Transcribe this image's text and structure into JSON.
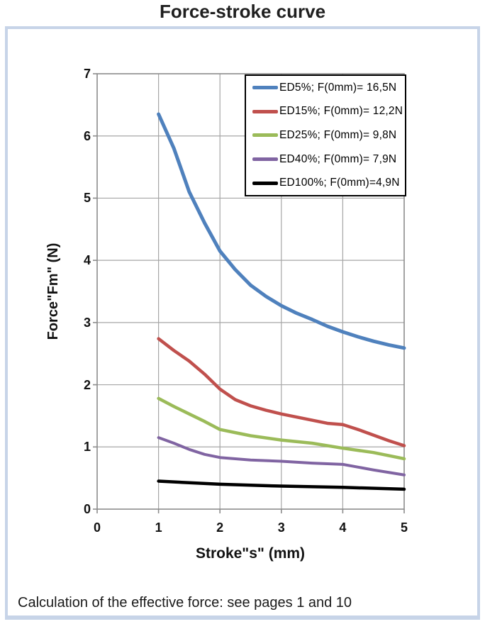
{
  "chart_data": {
    "type": "line",
    "title": "Force-stroke curve",
    "xlabel": "Stroke\"s\" (mm)",
    "ylabel": "Force\"Fm\" (N)",
    "xlim": [
      0,
      5
    ],
    "ylim": [
      0,
      7
    ],
    "x_ticks": [
      "0",
      "1",
      "2",
      "3",
      "4",
      "5"
    ],
    "y_ticks": [
      "0",
      "1",
      "2",
      "3",
      "4",
      "5",
      "6",
      "7"
    ],
    "grid": true,
    "legend_position": "top-right",
    "series": [
      {
        "label": "ED5%; F(0mm)= 16,5N",
        "color": "#4F81BD",
        "x": [
          1,
          1.25,
          1.5,
          1.75,
          2,
          2.25,
          2.5,
          2.75,
          3,
          3.25,
          3.5,
          3.75,
          4,
          4.25,
          4.5,
          4.75,
          5
        ],
        "y": [
          6.35,
          5.8,
          5.1,
          4.6,
          4.15,
          3.85,
          3.6,
          3.42,
          3.27,
          3.15,
          3.05,
          2.94,
          2.85,
          2.77,
          2.7,
          2.64,
          2.59
        ]
      },
      {
        "label": "ED15%; F(0mm)= 12,2N",
        "color": "#C0504D",
        "x": [
          1,
          1.25,
          1.5,
          1.75,
          2,
          2.25,
          2.5,
          2.75,
          3,
          3.25,
          3.5,
          3.75,
          4,
          4.25,
          4.5,
          4.75,
          5
        ],
        "y": [
          2.74,
          2.55,
          2.38,
          2.17,
          1.93,
          1.76,
          1.66,
          1.59,
          1.53,
          1.48,
          1.43,
          1.38,
          1.36,
          1.28,
          1.19,
          1.1,
          1.02
        ]
      },
      {
        "label": "ED25%; F(0mm)= 9,8N",
        "color": "#9BBB59",
        "x": [
          1,
          1.25,
          1.5,
          1.75,
          2,
          2.25,
          2.5,
          3,
          3.5,
          4,
          4.5,
          5
        ],
        "y": [
          1.78,
          1.65,
          1.53,
          1.41,
          1.28,
          1.23,
          1.18,
          1.11,
          1.06,
          0.98,
          0.91,
          0.81
        ]
      },
      {
        "label": "ED40%; F(0mm)= 7,9N",
        "color": "#8064A2",
        "x": [
          1,
          1.25,
          1.5,
          1.75,
          2,
          2.25,
          2.5,
          3,
          3.5,
          4,
          4.5,
          5
        ],
        "y": [
          1.15,
          1.06,
          0.96,
          0.88,
          0.83,
          0.81,
          0.79,
          0.77,
          0.74,
          0.72,
          0.63,
          0.55
        ]
      },
      {
        "label": "ED100%; F(0mm)=4,9N",
        "color": "#000000",
        "x": [
          1,
          2,
          3,
          4,
          5
        ],
        "y": [
          0.45,
          0.4,
          0.37,
          0.35,
          0.32
        ]
      }
    ]
  },
  "footer": {
    "text": "Calculation of the effective force: see pages 1 and 10"
  },
  "colors": {
    "box_border": "#C7D4E8",
    "gridline": "#A6A6A6",
    "axis": "#8C8C8C",
    "legend_border": "#000000",
    "text": "#111111"
  }
}
